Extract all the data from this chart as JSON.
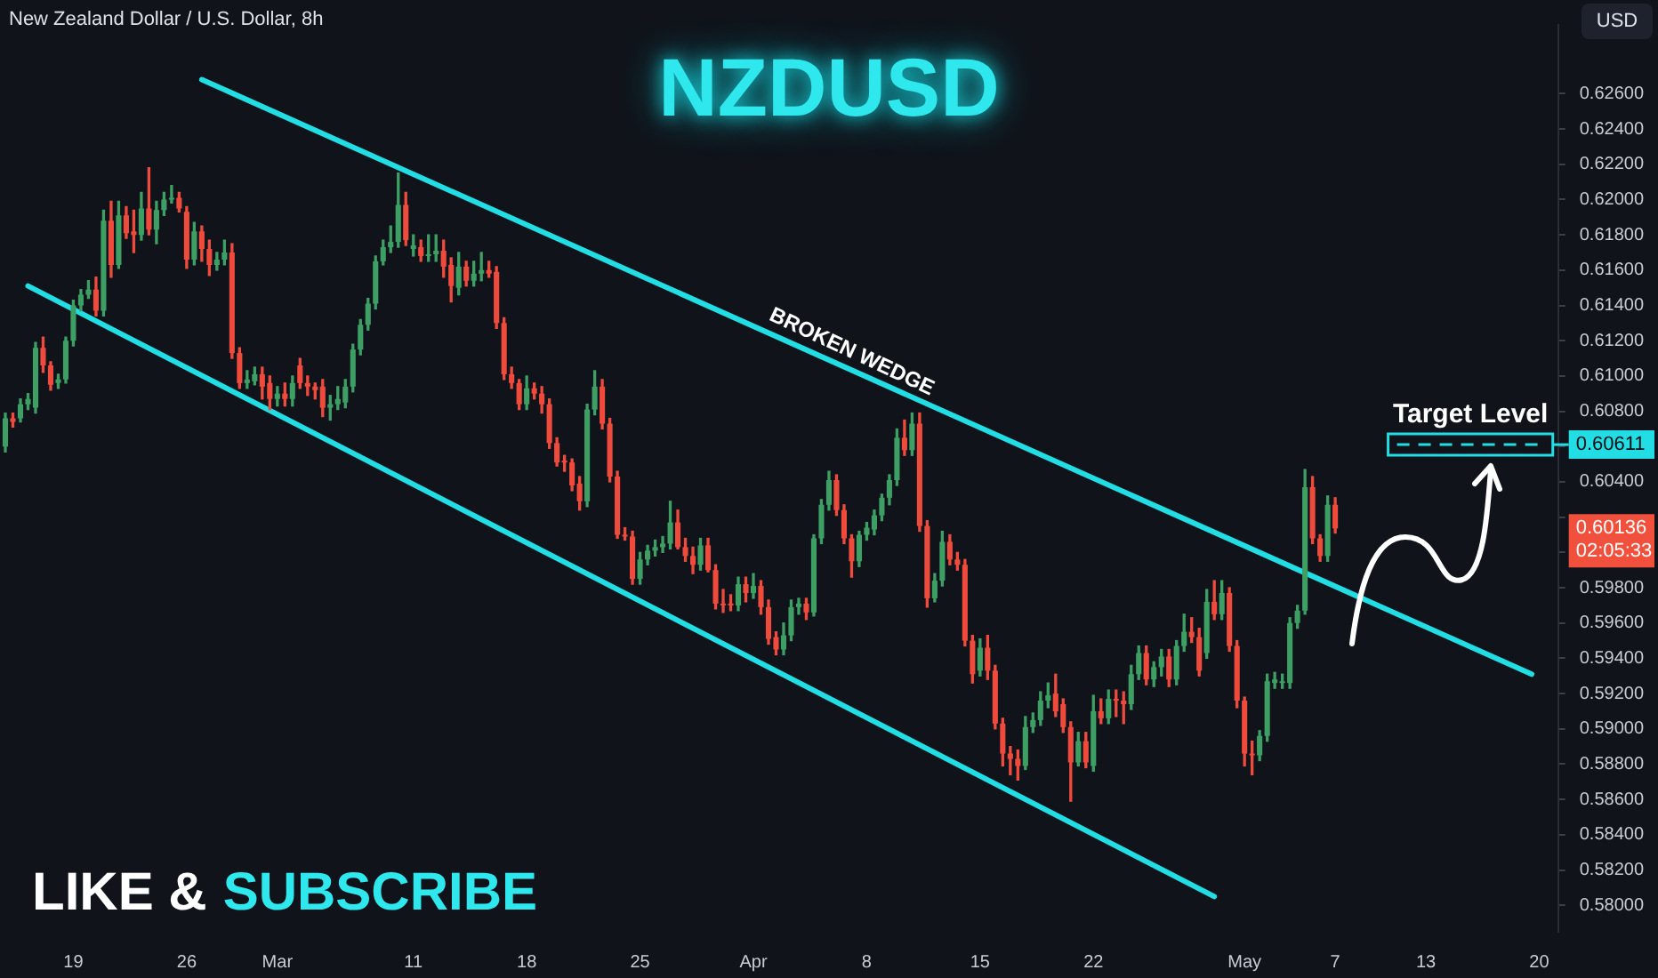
{
  "chart_data": {
    "type": "candlestick",
    "title": "NZDUSD",
    "subtitle": "New Zealand Dollar / U.S. Dollar, 8h",
    "categories": [
      null,
      null,
      null,
      null,
      null,
      null,
      null,
      null,
      null,
      "19",
      null,
      null,
      null,
      null,
      null,
      null,
      null,
      null,
      null,
      null,
      null,
      null,
      null,
      null,
      "26",
      null,
      null,
      null,
      null,
      null,
      null,
      null,
      null,
      null,
      null,
      null,
      "Mar",
      null,
      null,
      null,
      null,
      null,
      null,
      null,
      null,
      null,
      null,
      null,
      null,
      null,
      null,
      null,
      null,
      null,
      "11",
      null,
      null,
      null,
      null,
      null,
      null,
      null,
      null,
      null,
      null,
      null,
      null,
      null,
      null,
      "18",
      null,
      null,
      null,
      null,
      null,
      null,
      null,
      null,
      null,
      null,
      null,
      null,
      null,
      null,
      "25",
      null,
      null,
      null,
      null,
      null,
      null,
      null,
      null,
      null,
      null,
      null,
      null,
      null,
      null,
      "Apr",
      null,
      null,
      null,
      null,
      null,
      null,
      null,
      null,
      null,
      null,
      null,
      null,
      null,
      null,
      "8",
      null,
      null,
      null,
      null,
      null,
      null,
      null,
      null,
      null,
      null,
      null,
      null,
      null,
      null,
      "15",
      null,
      null,
      null,
      null,
      null,
      null,
      null,
      null,
      null,
      null,
      null,
      null,
      null,
      null,
      "22",
      null,
      null,
      null,
      null,
      null,
      null,
      null,
      null,
      null,
      null,
      null,
      null,
      null,
      null,
      null,
      null,
      null,
      null,
      null,
      "May",
      null,
      null,
      null,
      null,
      null,
      null,
      null,
      null,
      null,
      null,
      null,
      "7",
      null,
      null,
      null,
      null,
      null,
      null,
      null,
      null,
      null,
      null,
      null,
      "13",
      null,
      null,
      null,
      null,
      null,
      null,
      null,
      null,
      null,
      null,
      null,
      null,
      null,
      null,
      "20",
      null,
      null
    ],
    "series": [
      {
        "type": "line",
        "color": "#22dde3",
        "values": [
          null,
          null,
          null,
          null,
          null,
          null,
          null,
          null,
          null,
          null,
          null,
          null,
          null,
          null,
          null,
          null,
          null,
          null,
          null,
          null,
          null,
          null,
          null,
          null,
          null,
          null,
          0.6268,
          null,
          null,
          null,
          null,
          null,
          null,
          null,
          null,
          null,
          null,
          null,
          null,
          null,
          null,
          null,
          null,
          null,
          null,
          null,
          null,
          null,
          null,
          null,
          null,
          null,
          null,
          null,
          null,
          null,
          null,
          null,
          null,
          null,
          null,
          null,
          null,
          null,
          null,
          null,
          null,
          null,
          null,
          null,
          null,
          null,
          null,
          null,
          null,
          null,
          null,
          null,
          null,
          null,
          null,
          null,
          null,
          null,
          null,
          null,
          null,
          null,
          null,
          null,
          null,
          null,
          null,
          null,
          null,
          null,
          null,
          null,
          null,
          null,
          null,
          null,
          null,
          null,
          null,
          null,
          null,
          null,
          null,
          null,
          null,
          null,
          null,
          null,
          null,
          null,
          null,
          null,
          null,
          null,
          null,
          null,
          null,
          null,
          null,
          null,
          null,
          null,
          null,
          null,
          null,
          null,
          null,
          null,
          null,
          null,
          null,
          null,
          null,
          null,
          null,
          null,
          null,
          null,
          null,
          null,
          null,
          null,
          null,
          null,
          null,
          null,
          null,
          null,
          null,
          null,
          null,
          null,
          null,
          null,
          null,
          null,
          null,
          null,
          null,
          null,
          null,
          null,
          null,
          null,
          null,
          null,
          null,
          null,
          null,
          null,
          null,
          null,
          null,
          null,
          null,
          null,
          null,
          null,
          null,
          null,
          null,
          null,
          null,
          null,
          null,
          null,
          null,
          null,
          null,
          null,
          null,
          null,
          null,
          null,
          null,
          null,
          0.5931,
          null,
          null,
          null
        ]
      },
      {
        "type": "line",
        "color": "#22dde3",
        "values": [
          null,
          null,
          null,
          0.6151,
          null,
          null,
          null,
          null,
          null,
          null,
          null,
          null,
          null,
          null,
          null,
          null,
          null,
          null,
          null,
          null,
          null,
          null,
          null,
          null,
          null,
          null,
          null,
          null,
          null,
          null,
          null,
          null,
          null,
          null,
          null,
          null,
          null,
          null,
          null,
          null,
          null,
          null,
          null,
          null,
          null,
          null,
          null,
          null,
          null,
          null,
          null,
          null,
          null,
          null,
          null,
          null,
          null,
          null,
          null,
          null,
          null,
          null,
          null,
          null,
          null,
          null,
          null,
          null,
          null,
          null,
          null,
          null,
          null,
          null,
          null,
          null,
          null,
          null,
          null,
          null,
          null,
          null,
          null,
          null,
          null,
          null,
          null,
          null,
          null,
          null,
          null,
          null,
          null,
          null,
          null,
          null,
          null,
          null,
          null,
          null,
          null,
          null,
          null,
          null,
          null,
          null,
          null,
          null,
          null,
          null,
          null,
          null,
          null,
          null,
          null,
          null,
          null,
          null,
          null,
          null,
          null,
          null,
          null,
          null,
          null,
          null,
          null,
          null,
          null,
          null,
          null,
          null,
          null,
          null,
          null,
          null,
          null,
          null,
          null,
          null,
          null,
          null,
          null,
          null,
          null,
          null,
          null,
          null,
          null,
          null,
          null,
          null,
          null,
          null,
          null,
          null,
          null,
          null,
          null,
          null,
          0.5805,
          null,
          null,
          null,
          null,
          null,
          null,
          null,
          null,
          null,
          null,
          null,
          null,
          null,
          null,
          null,
          null,
          null,
          null,
          null,
          null,
          null,
          null,
          null,
          null,
          null,
          null,
          null,
          null,
          null,
          null,
          null,
          null,
          null,
          null,
          null,
          null,
          null,
          null,
          null,
          null,
          null,
          null,
          null,
          null,
          null
        ]
      },
      {
        "ohlc": [
          [
            0.606,
            0.6079,
            0.6057,
            0.6076
          ],
          [
            0.6076,
            0.6079,
            0.6071,
            0.6074
          ],
          [
            0.6076,
            0.6087,
            0.6074,
            0.6084
          ],
          [
            0.6084,
            0.609,
            0.6081,
            0.6087
          ],
          [
            0.6082,
            0.6119,
            0.6079,
            0.6116
          ],
          [
            0.6116,
            0.6122,
            0.6102,
            0.6106
          ],
          [
            0.6106,
            0.6108,
            0.6092,
            0.6095
          ],
          [
            0.6096,
            0.6101,
            0.6093,
            0.6098
          ],
          [
            0.6098,
            0.6122,
            0.6096,
            0.612
          ],
          [
            0.612,
            0.6143,
            0.6117,
            0.614
          ],
          [
            0.614,
            0.6149,
            0.6137,
            0.6146
          ],
          [
            0.6146,
            0.6154,
            0.6144,
            0.6149
          ],
          [
            0.6149,
            0.6156,
            0.6134,
            0.6137
          ],
          [
            0.6137,
            0.6194,
            0.6134,
            0.6188
          ],
          [
            0.6188,
            0.6199,
            0.6156,
            0.6163
          ],
          [
            0.6163,
            0.6199,
            0.6161,
            0.6191
          ],
          [
            0.6191,
            0.6196,
            0.6178,
            0.6181
          ],
          [
            0.6182,
            0.6194,
            0.617,
            0.618
          ],
          [
            0.618,
            0.6204,
            0.6177,
            0.6195
          ],
          [
            0.6195,
            0.6218,
            0.618,
            0.6183
          ],
          [
            0.6183,
            0.6199,
            0.6175,
            0.6194
          ],
          [
            0.6194,
            0.6204,
            0.6191,
            0.62
          ],
          [
            0.62,
            0.6208,
            0.6198,
            0.6201
          ],
          [
            0.6201,
            0.6204,
            0.6193,
            0.6195
          ],
          [
            0.6193,
            0.6196,
            0.6161,
            0.6166
          ],
          [
            0.6166,
            0.6187,
            0.6163,
            0.6182
          ],
          [
            0.6182,
            0.6185,
            0.6165,
            0.6172
          ],
          [
            0.6172,
            0.6177,
            0.6157,
            0.6163
          ],
          [
            0.6163,
            0.617,
            0.616,
            0.6166
          ],
          [
            0.6166,
            0.6177,
            0.6163,
            0.617
          ],
          [
            0.617,
            0.6175,
            0.611,
            0.6113
          ],
          [
            0.6113,
            0.6116,
            0.6093,
            0.6096
          ],
          [
            0.6096,
            0.6103,
            0.6093,
            0.6098
          ],
          [
            0.6097,
            0.6105,
            0.6095,
            0.6101
          ],
          [
            0.6101,
            0.6105,
            0.6087,
            0.6094
          ],
          [
            0.6096,
            0.61,
            0.6081,
            0.6087
          ],
          [
            0.6087,
            0.6094,
            0.6083,
            0.609
          ],
          [
            0.609,
            0.6096,
            0.6083,
            0.6087
          ],
          [
            0.6087,
            0.61,
            0.6083,
            0.6096
          ],
          [
            0.6106,
            0.611,
            0.6093,
            0.6096
          ],
          [
            0.6096,
            0.61,
            0.6089,
            0.6094
          ],
          [
            0.6094,
            0.6096,
            0.6087,
            0.6092
          ],
          [
            0.6094,
            0.6098,
            0.6077,
            0.6082
          ],
          [
            0.6082,
            0.6089,
            0.6075,
            0.6084
          ],
          [
            0.6084,
            0.6094,
            0.6081,
            0.6087
          ],
          [
            0.6085,
            0.6098,
            0.6082,
            0.6094
          ],
          [
            0.6094,
            0.6118,
            0.6091,
            0.6115
          ],
          [
            0.6115,
            0.6132,
            0.6112,
            0.6129
          ],
          [
            0.6129,
            0.6144,
            0.6126,
            0.6141
          ],
          [
            0.6141,
            0.6168,
            0.6138,
            0.6165
          ],
          [
            0.6165,
            0.6177,
            0.6163,
            0.6173
          ],
          [
            0.6173,
            0.6185,
            0.617,
            0.6176
          ],
          [
            0.6176,
            0.6215,
            0.6173,
            0.6197
          ],
          [
            0.6197,
            0.6204,
            0.6174,
            0.6177
          ],
          [
            0.6172,
            0.618,
            0.6168,
            0.6174
          ],
          [
            0.6173,
            0.6177,
            0.6165,
            0.6168
          ],
          [
            0.6168,
            0.618,
            0.6165,
            0.6169
          ],
          [
            0.6169,
            0.618,
            0.6165,
            0.6171
          ],
          [
            0.6171,
            0.6177,
            0.6156,
            0.6162
          ],
          [
            0.6163,
            0.6167,
            0.6142,
            0.6151
          ],
          [
            0.615,
            0.617,
            0.6146,
            0.6162
          ],
          [
            0.6162,
            0.6165,
            0.6151,
            0.6154
          ],
          [
            0.6154,
            0.6165,
            0.6151,
            0.6158
          ],
          [
            0.6158,
            0.617,
            0.6154,
            0.616
          ],
          [
            0.616,
            0.6165,
            0.6156,
            0.6158
          ],
          [
            0.6159,
            0.6162,
            0.6127,
            0.613
          ],
          [
            0.613,
            0.6133,
            0.6098,
            0.6101
          ],
          [
            0.6101,
            0.6105,
            0.6093,
            0.6096
          ],
          [
            0.6096,
            0.6098,
            0.6081,
            0.6084
          ],
          [
            0.6084,
            0.61,
            0.6081,
            0.6093
          ],
          [
            0.6093,
            0.6096,
            0.6087,
            0.609
          ],
          [
            0.609,
            0.6094,
            0.6079,
            0.6084
          ],
          [
            0.6084,
            0.6087,
            0.6059,
            0.6062
          ],
          [
            0.6062,
            0.6065,
            0.6049,
            0.6051
          ],
          [
            0.6052,
            0.6055,
            0.6046,
            0.6051
          ],
          [
            0.6051,
            0.6053,
            0.6035,
            0.6038
          ],
          [
            0.6039,
            0.6043,
            0.6024,
            0.6029
          ],
          [
            0.6029,
            0.6084,
            0.6026,
            0.6081
          ],
          [
            0.6081,
            0.6103,
            0.6078,
            0.6094
          ],
          [
            0.6094,
            0.6098,
            0.607,
            0.6073
          ],
          [
            0.6073,
            0.6076,
            0.604,
            0.6043
          ],
          [
            0.6043,
            0.6046,
            0.6008,
            0.601
          ],
          [
            0.601,
            0.6014,
            0.6007,
            0.6009
          ],
          [
            0.6009,
            0.6012,
            0.5982,
            0.5985
          ],
          [
            0.5985,
            0.6,
            0.5982,
            0.5996
          ],
          [
            0.5996,
            0.6004,
            0.5993,
            0.6001
          ],
          [
            0.6001,
            0.6007,
            0.5998,
            0.6003
          ],
          [
            0.6003,
            0.6009,
            0.6,
            0.6005
          ],
          [
            0.6005,
            0.6029,
            0.6002,
            0.6017
          ],
          [
            0.6017,
            0.6024,
            0.6002,
            0.6003
          ],
          [
            0.6003,
            0.6008,
            0.5995,
            0.5998
          ],
          [
            0.5998,
            0.6003,
            0.5988,
            0.5993
          ],
          [
            0.5993,
            0.6008,
            0.599,
            0.6004
          ],
          [
            0.6004,
            0.6008,
            0.5989,
            0.599
          ],
          [
            0.599,
            0.5993,
            0.5968,
            0.5971
          ],
          [
            0.5971,
            0.5979,
            0.5966,
            0.597
          ],
          [
            0.5971,
            0.5976,
            0.5967,
            0.597
          ],
          [
            0.597,
            0.5986,
            0.5967,
            0.5982
          ],
          [
            0.5982,
            0.5986,
            0.5972,
            0.5977
          ],
          [
            0.5977,
            0.5988,
            0.5974,
            0.5981
          ],
          [
            0.5981,
            0.5984,
            0.5965,
            0.5969
          ],
          [
            0.5969,
            0.5973,
            0.5948,
            0.5951
          ],
          [
            0.5952,
            0.5955,
            0.5942,
            0.5945
          ],
          [
            0.5945,
            0.596,
            0.5942,
            0.5953
          ],
          [
            0.5953,
            0.5973,
            0.595,
            0.5969
          ],
          [
            0.5969,
            0.5974,
            0.5965,
            0.5971
          ],
          [
            0.5971,
            0.5974,
            0.5962,
            0.5966
          ],
          [
            0.5966,
            0.601,
            0.5964,
            0.6008
          ],
          [
            0.6008,
            0.603,
            0.6005,
            0.6027
          ],
          [
            0.6027,
            0.6046,
            0.6024,
            0.6041
          ],
          [
            0.6041,
            0.6044,
            0.6021,
            0.6024
          ],
          [
            0.6024,
            0.6027,
            0.6005,
            0.6008
          ],
          [
            0.6008,
            0.601,
            0.5986,
            0.5995
          ],
          [
            0.5995,
            0.6012,
            0.5992,
            0.601
          ],
          [
            0.601,
            0.6017,
            0.6007,
            0.6014
          ],
          [
            0.6013,
            0.6024,
            0.601,
            0.6021
          ],
          [
            0.6021,
            0.6033,
            0.6018,
            0.6031
          ],
          [
            0.6031,
            0.6044,
            0.6027,
            0.6041
          ],
          [
            0.6041,
            0.607,
            0.6038,
            0.6065
          ],
          [
            0.6065,
            0.6075,
            0.6055,
            0.6058
          ],
          [
            0.6058,
            0.6079,
            0.6055,
            0.6073
          ],
          [
            0.6073,
            0.6079,
            0.6012,
            0.6015
          ],
          [
            0.6015,
            0.6018,
            0.5969,
            0.5974
          ],
          [
            0.5974,
            0.5988,
            0.5972,
            0.5984
          ],
          [
            0.5984,
            0.6012,
            0.5981,
            0.6006
          ],
          [
            0.6006,
            0.601,
            0.5993,
            0.5996
          ],
          [
            0.5996,
            0.6,
            0.599,
            0.5993
          ],
          [
            0.5993,
            0.5996,
            0.5947,
            0.595
          ],
          [
            0.595,
            0.5953,
            0.5926,
            0.5931
          ],
          [
            0.5933,
            0.5951,
            0.593,
            0.5946
          ],
          [
            0.5946,
            0.5953,
            0.5928,
            0.5933
          ],
          [
            0.5933,
            0.5936,
            0.59,
            0.5903
          ],
          [
            0.5903,
            0.5906,
            0.5879,
            0.5886
          ],
          [
            0.5886,
            0.589,
            0.5874,
            0.5883
          ],
          [
            0.5883,
            0.5888,
            0.5871,
            0.5879
          ],
          [
            0.5879,
            0.5907,
            0.5877,
            0.5901
          ],
          [
            0.5901,
            0.5909,
            0.5898,
            0.5905
          ],
          [
            0.5905,
            0.5921,
            0.5902,
            0.5916
          ],
          [
            0.5916,
            0.5926,
            0.5912,
            0.5919
          ],
          [
            0.592,
            0.5931,
            0.5907,
            0.591
          ],
          [
            0.5914,
            0.5917,
            0.5898,
            0.5901
          ],
          [
            0.5901,
            0.5904,
            0.5859,
            0.5881
          ],
          [
            0.5881,
            0.5898,
            0.5879,
            0.5893
          ],
          [
            0.5893,
            0.5898,
            0.5878,
            0.5881
          ],
          [
            0.5879,
            0.5919,
            0.5876,
            0.591
          ],
          [
            0.591,
            0.5917,
            0.5903,
            0.5906
          ],
          [
            0.5906,
            0.5922,
            0.5903,
            0.5917
          ],
          [
            0.5917,
            0.5922,
            0.5907,
            0.5916
          ],
          [
            0.5916,
            0.5921,
            0.5903,
            0.5914
          ],
          [
            0.5914,
            0.5936,
            0.5911,
            0.5931
          ],
          [
            0.5931,
            0.5947,
            0.5928,
            0.5943
          ],
          [
            0.5943,
            0.5947,
            0.5925,
            0.5928
          ],
          [
            0.5928,
            0.5938,
            0.5924,
            0.5935
          ],
          [
            0.5935,
            0.5945,
            0.593,
            0.5941
          ],
          [
            0.5941,
            0.5945,
            0.5924,
            0.5928
          ],
          [
            0.5928,
            0.595,
            0.5925,
            0.5947
          ],
          [
            0.5947,
            0.5965,
            0.5944,
            0.5955
          ],
          [
            0.5955,
            0.5963,
            0.5949,
            0.5952
          ],
          [
            0.5952,
            0.5957,
            0.593,
            0.5933
          ],
          [
            0.5943,
            0.5979,
            0.594,
            0.5972
          ],
          [
            0.5972,
            0.5984,
            0.5962,
            0.5965
          ],
          [
            0.5965,
            0.5984,
            0.5962,
            0.5977
          ],
          [
            0.5977,
            0.598,
            0.5944,
            0.5947
          ],
          [
            0.5947,
            0.595,
            0.5912,
            0.5916
          ],
          [
            0.5916,
            0.5918,
            0.5879,
            0.5886
          ],
          [
            0.5886,
            0.5893,
            0.5874,
            0.5885
          ],
          [
            0.5885,
            0.5899,
            0.5882,
            0.5896
          ],
          [
            0.5896,
            0.5931,
            0.5893,
            0.5927
          ],
          [
            0.5926,
            0.5932,
            0.5923,
            0.5928
          ],
          [
            0.5926,
            0.5931,
            0.5923,
            0.5927
          ],
          [
            0.5926,
            0.5963,
            0.5923,
            0.596
          ],
          [
            0.596,
            0.597,
            0.5957,
            0.5967
          ],
          [
            0.5967,
            0.6047,
            0.5965,
            0.6037
          ],
          [
            0.6037,
            0.6043,
            0.6005,
            0.6008
          ],
          [
            0.6008,
            0.601,
            0.5995,
            0.5998
          ],
          [
            0.5998,
            0.6032,
            0.5995,
            0.6027
          ],
          [
            0.6027,
            0.6031,
            0.6011,
            0.60136
          ],
          null,
          null,
          null,
          null,
          null,
          null,
          null,
          null,
          null,
          null,
          null,
          null,
          null,
          null,
          null,
          null,
          null,
          null,
          null,
          null,
          null,
          null,
          null,
          null,
          null,
          null,
          null,
          null,
          null
        ],
        "colors": [
          "#3d9f64",
          "#ef4b3d",
          "#3d9f64",
          "#3d9f64",
          "#3d9f64",
          "#ef4b3d",
          "#ef4b3d",
          "#3d9f64",
          "#3d9f64",
          "#3d9f64",
          "#3d9f64",
          "#3d9f64",
          "#ef4b3d",
          "#3d9f64",
          "#ef4b3d",
          "#3d9f64",
          "#ef4b3d",
          "#ef4b3d",
          "#3d9f64",
          "#ef4b3d",
          "#3d9f64",
          "#3d9f64",
          "#3d9f64",
          "#ef4b3d",
          "#ef4b3d",
          "#3d9f64",
          "#ef4b3d",
          "#ef4b3d",
          "#3d9f64",
          "#3d9f64",
          "#ef4b3d",
          "#ef4b3d",
          "#3d9f64",
          "#3d9f64",
          "#ef4b3d",
          "#ef4b3d",
          "#3d9f64",
          "#ef4b3d",
          "#3d9f64",
          "#ef4b3d",
          "#ef4b3d",
          "#ef4b3d",
          "#ef4b3d",
          "#3d9f64",
          "#3d9f64",
          "#3d9f64",
          "#3d9f64",
          "#3d9f64",
          "#3d9f64",
          "#3d9f64",
          "#3d9f64",
          "#3d9f64",
          "#3d9f64",
          "#ef4b3d",
          "#3d9f64",
          "#ef4b3d",
          "#3d9f64",
          "#3d9f64",
          "#ef4b3d",
          "#ef4b3d",
          "#3d9f64",
          "#ef4b3d",
          "#3d9f64",
          "#3d9f64",
          "#ef4b3d",
          "#ef4b3d",
          "#ef4b3d",
          "#ef4b3d",
          "#ef4b3d",
          "#3d9f64",
          "#ef4b3d",
          "#ef4b3d",
          "#ef4b3d",
          "#ef4b3d",
          "#ef4b3d",
          "#ef4b3d",
          "#ef4b3d",
          "#3d9f64",
          "#3d9f64",
          "#ef4b3d",
          "#ef4b3d",
          "#ef4b3d",
          "#ef4b3d",
          "#ef4b3d",
          "#3d9f64",
          "#3d9f64",
          "#3d9f64",
          "#3d9f64",
          "#3d9f64",
          "#ef4b3d",
          "#ef4b3d",
          "#ef4b3d",
          "#3d9f64",
          "#ef4b3d",
          "#ef4b3d",
          "#ef4b3d",
          "#ef4b3d",
          "#3d9f64",
          "#ef4b3d",
          "#3d9f64",
          "#ef4b3d",
          "#ef4b3d",
          "#ef4b3d",
          "#3d9f64",
          "#3d9f64",
          "#3d9f64",
          "#ef4b3d",
          "#3d9f64",
          "#3d9f64",
          "#3d9f64",
          "#ef4b3d",
          "#ef4b3d",
          "#ef4b3d",
          "#3d9f64",
          "#3d9f64",
          "#3d9f64",
          "#3d9f64",
          "#3d9f64",
          "#3d9f64",
          "#ef4b3d",
          "#3d9f64",
          "#ef4b3d",
          "#ef4b3d",
          "#3d9f64",
          "#3d9f64",
          "#ef4b3d",
          "#ef4b3d",
          "#ef4b3d",
          "#ef4b3d",
          "#3d9f64",
          "#ef4b3d",
          "#ef4b3d",
          "#ef4b3d",
          "#ef4b3d",
          "#ef4b3d",
          "#3d9f64",
          "#3d9f64",
          "#3d9f64",
          "#3d9f64",
          "#ef4b3d",
          "#ef4b3d",
          "#ef4b3d",
          "#3d9f64",
          "#ef4b3d",
          "#3d9f64",
          "#ef4b3d",
          "#3d9f64",
          "#ef4b3d",
          "#ef4b3d",
          "#3d9f64",
          "#3d9f64",
          "#ef4b3d",
          "#3d9f64",
          "#3d9f64",
          "#ef4b3d",
          "#3d9f64",
          "#3d9f64",
          "#ef4b3d",
          "#ef4b3d",
          "#3d9f64",
          "#ef4b3d",
          "#3d9f64",
          "#ef4b3d",
          "#ef4b3d",
          "#ef4b3d",
          "#ef4b3d",
          "#3d9f64",
          "#3d9f64",
          "#3d9f64",
          "#3d9f64",
          "#3d9f64",
          "#3d9f64",
          "#3d9f64",
          "#ef4b3d",
          "#ef4b3d",
          "#3d9f64",
          "#ef4b3d",
          null,
          null,
          null,
          null,
          null,
          null,
          null,
          null,
          null,
          null,
          null,
          null,
          null,
          null,
          null,
          null,
          null,
          null,
          null,
          null,
          null,
          null,
          null,
          null,
          null,
          null,
          null,
          null,
          null
        ]
      }
    ],
    "ylim": [
      0.5785,
      0.6299
    ],
    "yticks": [
      {
        "value": 0.58,
        "label": "0.58000"
      },
      {
        "value": 0.582,
        "label": "0.58200"
      },
      {
        "value": 0.584,
        "label": "0.58400"
      },
      {
        "value": 0.586,
        "label": "0.58600"
      },
      {
        "value": 0.588,
        "label": "0.58800"
      },
      {
        "value": 0.59,
        "label": "0.59000"
      },
      {
        "value": 0.592,
        "label": "0.59200"
      },
      {
        "value": 0.594,
        "label": "0.59400"
      },
      {
        "value": 0.596,
        "label": "0.59600"
      },
      {
        "value": 0.598,
        "label": "0.59800"
      },
      {
        "value": 0.6,
        "label": null
      },
      {
        "value": 0.602,
        "label": null
      },
      {
        "value": 0.604,
        "label": "0.60400"
      },
      {
        "value": 0.606,
        "label": null
      },
      {
        "value": 0.608,
        "label": "0.60800"
      },
      {
        "value": 0.61,
        "label": "0.61000"
      },
      {
        "value": 0.612,
        "label": "0.61200"
      },
      {
        "value": 0.614,
        "label": "0.61400"
      },
      {
        "value": 0.616,
        "label": "0.61600"
      },
      {
        "value": 0.618,
        "label": "0.61800"
      },
      {
        "value": 0.62,
        "label": "0.62000"
      },
      {
        "value": 0.622,
        "label": "0.62200"
      },
      {
        "value": 0.624,
        "label": "0.62400"
      },
      {
        "value": 0.626,
        "label": "0.62600"
      }
    ],
    "ref_lines": [
      {
        "axis": "y",
        "value": 0.60611,
        "label": "Target Level",
        "color": "#22dde3",
        "line_style": "dashed"
      }
    ],
    "annotations": [
      "BROKEN WEDGE",
      "LIKE &",
      "SUBSCRIBE",
      "0.60136",
      "02:05:33",
      "USD",
      "0.60611"
    ]
  }
}
